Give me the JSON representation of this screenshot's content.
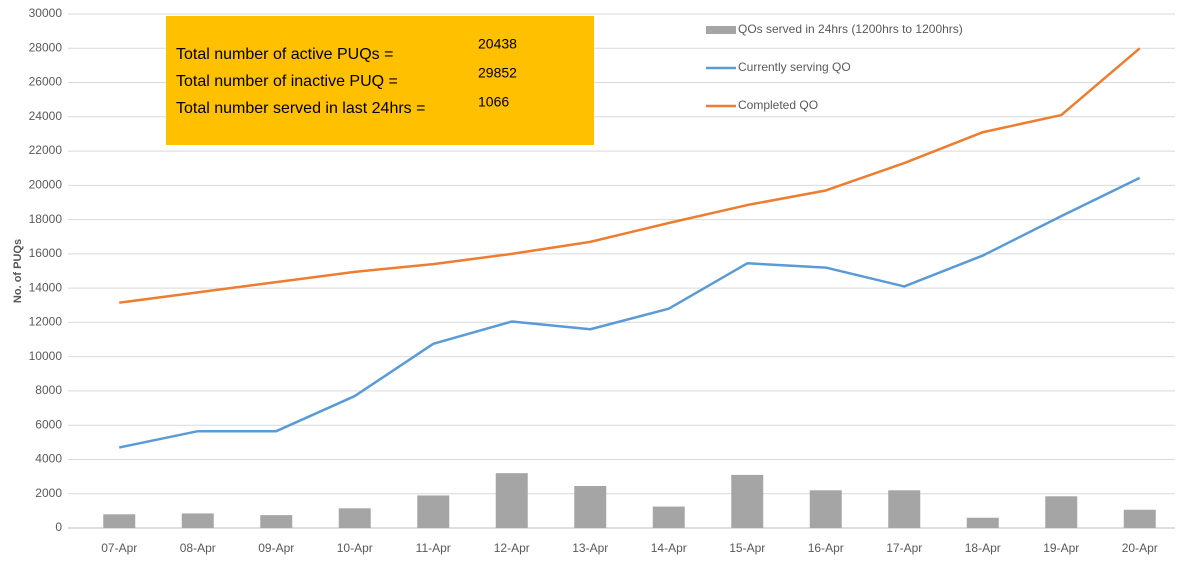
{
  "chart_data": {
    "type": "combo",
    "ylabel": "No. of PUQs",
    "categories": [
      "07-Apr",
      "08-Apr",
      "09-Apr",
      "10-Apr",
      "11-Apr",
      "12-Apr",
      "13-Apr",
      "14-Apr",
      "15-Apr",
      "16-Apr",
      "17-Apr",
      "18-Apr",
      "19-Apr",
      "20-Apr"
    ],
    "series": [
      {
        "name": "QOs served in 24hrs (1200hrs to 1200hrs)",
        "type": "bar",
        "color": "#a5a5a5",
        "values": [
          800,
          850,
          750,
          1150,
          1900,
          3200,
          2450,
          1250,
          3100,
          2200,
          2200,
          600,
          1850,
          1066
        ]
      },
      {
        "name": "Currently serving QO",
        "type": "line",
        "color": "#5b9bd5",
        "values": [
          4700,
          5650,
          5650,
          7700,
          10750,
          12050,
          11600,
          12800,
          15450,
          15200,
          14100,
          15900,
          18200,
          20438
        ]
      },
      {
        "name": "Completed QO",
        "type": "line",
        "color": "#ed7d31",
        "values": [
          13150,
          13750,
          14350,
          14950,
          15400,
          16000,
          16700,
          17800,
          18850,
          19700,
          21300,
          23100,
          24100,
          28000
        ]
      }
    ],
    "ylim": [
      0,
      30000
    ],
    "yticks": [
      0,
      2000,
      4000,
      6000,
      8000,
      10000,
      12000,
      14000,
      16000,
      18000,
      20000,
      22000,
      24000,
      26000,
      28000,
      30000
    ],
    "grid": true,
    "legend": "top-right",
    "annotation_color": "#ffc000",
    "annotations": [
      {
        "label": "Total number of active PUQs =",
        "value": 20438
      },
      {
        "label": "Total number of inactive PUQ =",
        "value": 29852
      },
      {
        "label": "Total number served in last 24hrs =",
        "value": 1066
      }
    ]
  }
}
